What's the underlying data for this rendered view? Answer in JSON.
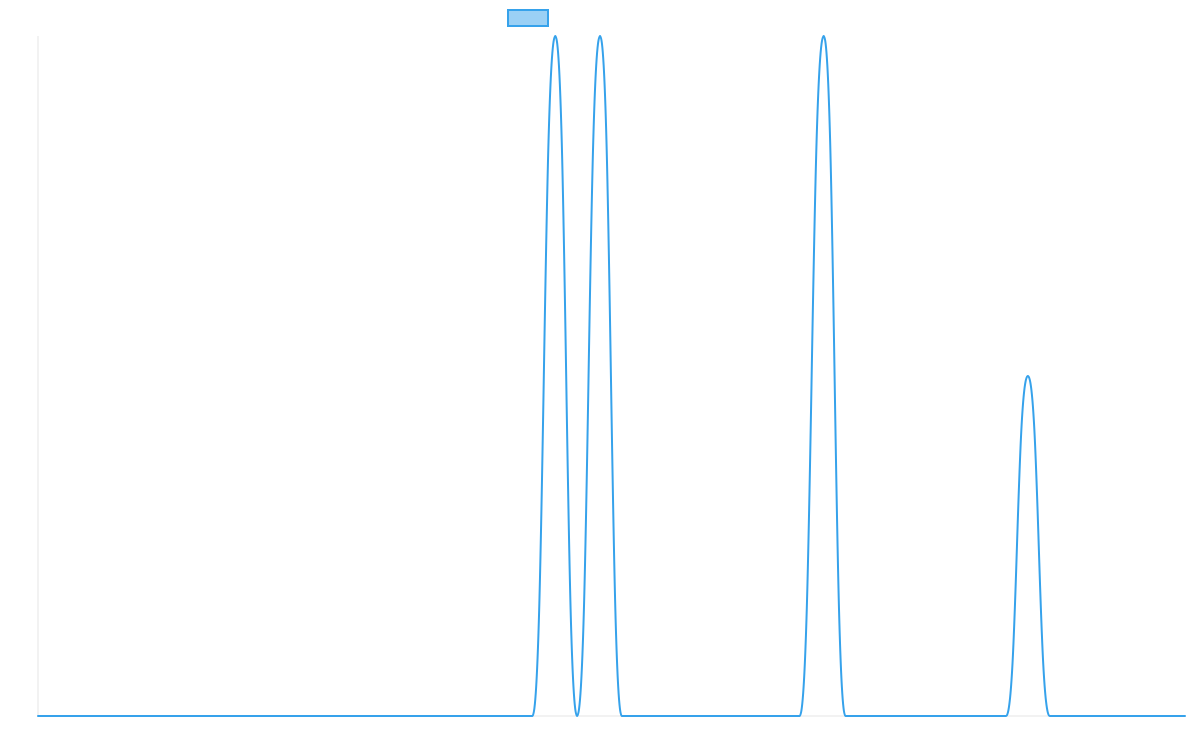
{
  "chart_data": {
    "type": "line",
    "title": "",
    "xlabel": "",
    "ylabel": "",
    "x_range": [
      0,
      100
    ],
    "ylim": [
      0,
      1
    ],
    "grid": false,
    "legend": {
      "position": "top-center",
      "entries": [
        {
          "label": "",
          "color": "#36a2eb"
        }
      ]
    },
    "series": [
      {
        "name": "",
        "color": "#36a2eb",
        "fill": "#9ad0f5",
        "x": [
          0,
          43.1,
          45.1,
          47.0,
          49.0,
          50.9,
          66.4,
          68.5,
          70.4,
          84.4,
          86.3,
          88.2,
          100
        ],
        "y": [
          0,
          0,
          1.0,
          0,
          1.0,
          0,
          0,
          1.0,
          0,
          0,
          0.5,
          0,
          0
        ]
      }
    ]
  }
}
